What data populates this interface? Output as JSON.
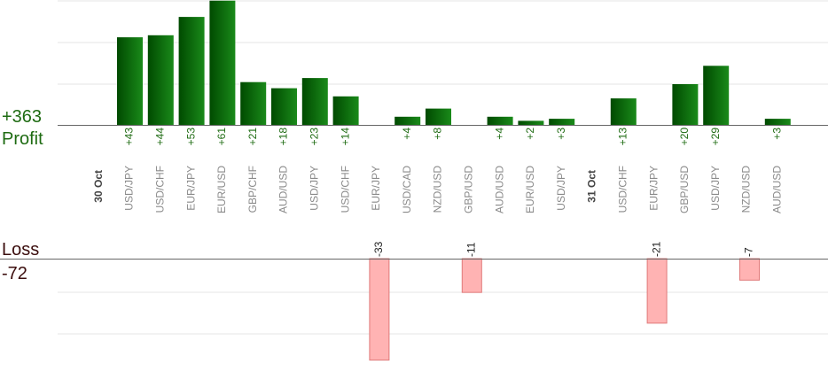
{
  "profit": {
    "label": "Profit",
    "total": "+363"
  },
  "loss": {
    "label": "Loss",
    "total": "-72"
  },
  "colors": {
    "profit_bar_dark": "#004a00",
    "profit_bar_light": "#1a8a1a",
    "profit_text": "#1e6b12",
    "loss_fill": "#ffb3b3",
    "loss_stroke": "#e07a7a",
    "axis": "#666666",
    "grid": "#e6e6e6",
    "category_text": "#8a8a8a",
    "date_text": "#444444"
  },
  "chart_data": {
    "type": "bar",
    "title": "",
    "groups": [
      {
        "date": "30 Oct",
        "categories": [
          "USD/JPY",
          "USD/CHF",
          "EUR/JPY",
          "EUR/USD",
          "GBP/CHF",
          "AUD/USD",
          "USD/JPY",
          "USD/CHF",
          "EUR/JPY",
          "USD/CAD",
          "NZD/USD",
          "GBP/USD",
          "AUD/USD",
          "EUR/USD",
          "USD/JPY"
        ]
      },
      {
        "date": "31 Oct",
        "categories": [
          "USD/CHF",
          "EUR/JPY",
          "GBP/USD",
          "USD/JPY",
          "NZD/USD",
          "AUD/USD"
        ]
      }
    ],
    "profit": {
      "values": [
        43,
        44,
        53,
        61,
        21,
        18,
        23,
        14,
        0,
        4,
        8,
        0,
        4,
        2,
        3,
        13,
        0,
        20,
        29,
        0,
        3
      ],
      "labels": [
        "+43",
        "+44",
        "+53",
        "+61",
        "+21",
        "+18",
        "+23",
        "+14",
        "",
        "+4",
        "+8",
        "",
        "+4",
        "+2",
        "+3",
        "+13",
        "",
        "+20",
        "+29",
        "",
        "+3"
      ]
    },
    "loss": {
      "values": [
        0,
        0,
        0,
        0,
        0,
        0,
        0,
        0,
        -33,
        0,
        0,
        -11,
        0,
        0,
        0,
        0,
        -21,
        0,
        0,
        -7,
        0
      ],
      "labels": [
        "",
        "",
        "",
        "",
        "",
        "",
        "",
        "",
        "-33",
        "",
        "",
        "-11",
        "",
        "",
        "",
        "",
        "-21",
        "",
        "",
        "-7",
        ""
      ]
    },
    "grid": true
  }
}
